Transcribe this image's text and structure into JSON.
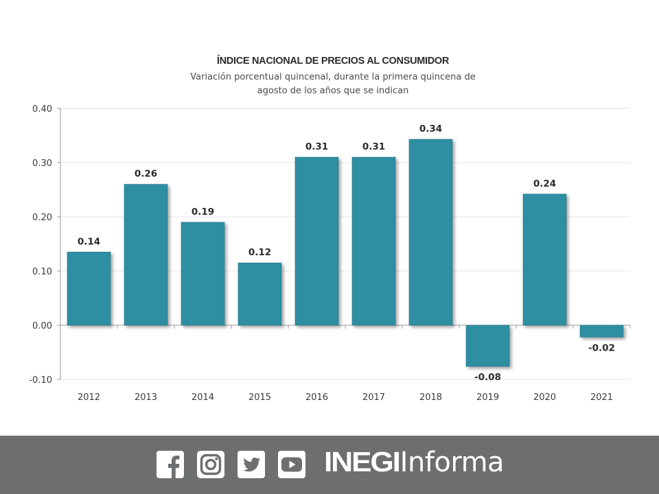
{
  "chart_data": {
    "type": "bar",
    "title": "ÍNDICE NACIONAL DE PRECIOS AL CONSUMIDOR",
    "subtitle_lines": [
      "Variación porcentual quincenal, durante la primera quincena de",
      "agosto de los años que se indican"
    ],
    "categories": [
      "2012",
      "2013",
      "2014",
      "2015",
      "2016",
      "2017",
      "2018",
      "2019",
      "2020",
      "2021"
    ],
    "values": [
      0.135,
      0.26,
      0.19,
      0.115,
      0.31,
      0.31,
      0.343,
      -0.076,
      0.242,
      -0.022
    ],
    "data_labels": [
      "0.14",
      "0.26",
      "0.19",
      "0.12",
      "0.31",
      "0.31",
      "0.34",
      "-0.08",
      "0.24",
      "-0.02"
    ],
    "y_ticks": [
      0.4,
      0.3,
      0.2,
      0.1,
      0.0,
      -0.1
    ],
    "y_tick_labels": [
      "0.40",
      "0.30",
      "0.20",
      "0.10",
      "0.00",
      "-0.10"
    ],
    "ylim": [
      -0.1,
      0.4
    ],
    "xlabel": "",
    "ylabel": "",
    "grid": true,
    "colors": {
      "bar": "#2f8fa3",
      "bar_edge": "#1d6f80",
      "grid": "#e6e6e6",
      "axis": "#9a9a9a",
      "text": "#2b2b2b",
      "subtitle": "#4a4a4a"
    }
  },
  "footer": {
    "background": "#6d6e70",
    "icons": [
      "facebook-icon",
      "instagram-icon",
      "twitter-icon",
      "youtube-icon"
    ],
    "brand_bold": "INEGI",
    "brand_light": "Informa"
  }
}
